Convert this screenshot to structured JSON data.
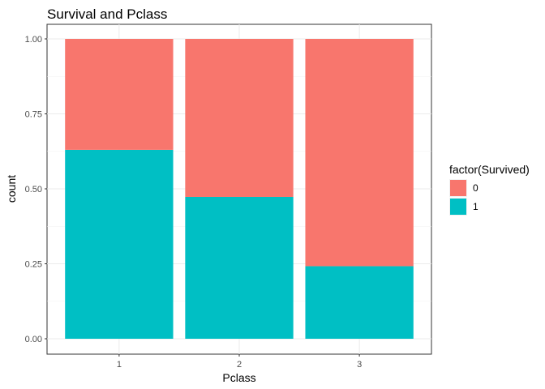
{
  "chart_data": {
    "type": "bar",
    "stacked": true,
    "title": "Survival and Pclass",
    "xlabel": "Pclass",
    "ylabel": "count",
    "categories": [
      "1",
      "2",
      "3"
    ],
    "series": [
      {
        "name": "0",
        "values": [
          0.37,
          0.527,
          0.758
        ],
        "color": "#f8766d"
      },
      {
        "name": "1",
        "values": [
          0.63,
          0.473,
          0.242
        ],
        "color": "#00bfc4"
      }
    ],
    "ylim": [
      0,
      1
    ],
    "yticks": [
      "0.00",
      "0.25",
      "0.50",
      "0.75",
      "1.00"
    ],
    "grid": true,
    "legend": {
      "title": "factor(Survived)",
      "placement": "right"
    }
  }
}
